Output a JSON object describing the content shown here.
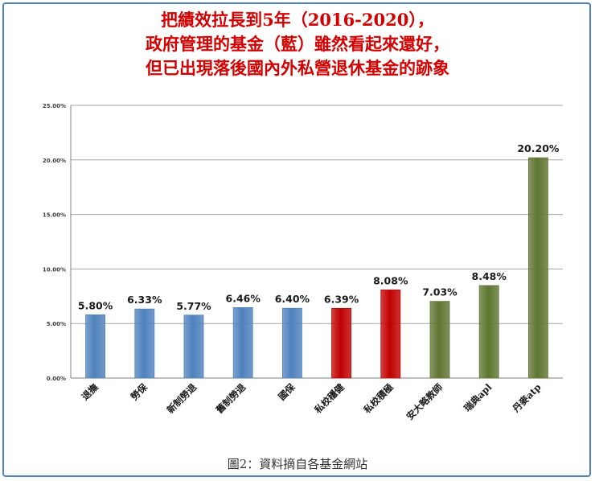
{
  "title_lines": [
    "把績效拉長到5年（2016-2020），",
    "政府管理的基金（藍）雖然看起來還好，",
    "但已出現落後國內外私營退休基金的跡象"
  ],
  "caption": "圖2：資料摘自各基金網站",
  "chart_data": {
    "type": "bar",
    "categories": [
      "退撫",
      "勞保",
      "新制勞退",
      "舊制勞退",
      "國保",
      "私校穩健",
      "私校積極",
      "安大略教師",
      "瑞典apl",
      "丹麥atp"
    ],
    "values": [
      5.8,
      6.33,
      5.77,
      6.46,
      6.4,
      6.39,
      8.08,
      7.03,
      8.48,
      20.2
    ],
    "value_labels": [
      "5.80%",
      "6.33%",
      "5.77%",
      "6.46%",
      "6.40%",
      "6.39%",
      "8.08%",
      "7.03%",
      "8.48%",
      "20.20%"
    ],
    "bar_colors": [
      "#4f81bd",
      "#4f81bd",
      "#4f81bd",
      "#4f81bd",
      "#4f81bd",
      "#c00000",
      "#c00000",
      "#5f7530",
      "#5f7530",
      "#5f7530"
    ],
    "y_ticks": [
      "0.00%",
      "5.00%",
      "10.00%",
      "15.00%",
      "20.00%",
      "25.00%"
    ],
    "ylim": [
      0,
      25
    ],
    "grid": true,
    "xlabel": "",
    "ylabel": ""
  }
}
